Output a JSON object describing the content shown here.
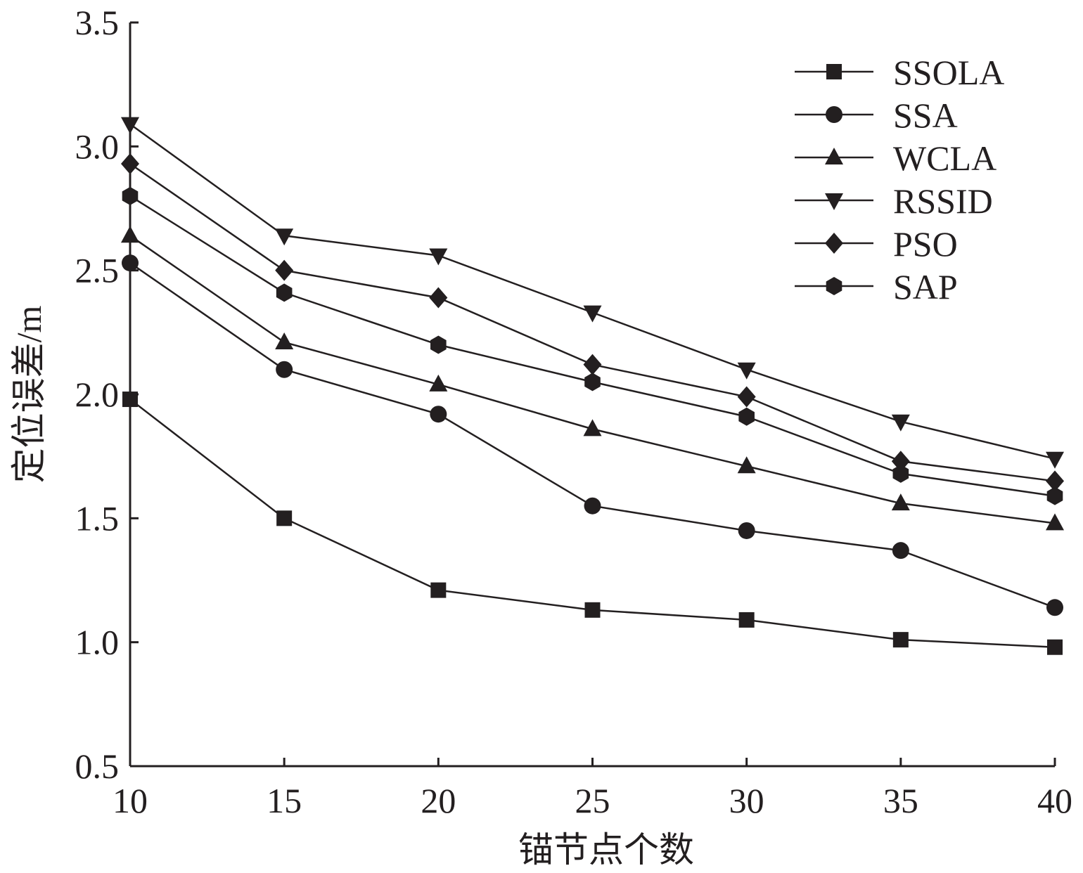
{
  "chart_data": {
    "type": "line",
    "xlabel": "锚节点个数",
    "ylabel": "定位误差/m",
    "x": [
      10,
      15,
      20,
      25,
      30,
      35,
      40
    ],
    "xlim": [
      10,
      40
    ],
    "ylim": [
      0.5,
      3.5
    ],
    "x_ticks": [
      "10",
      "15",
      "20",
      "25",
      "30",
      "35",
      "40"
    ],
    "y_ticks": [
      "0.5",
      "1.0",
      "1.5",
      "2.0",
      "2.5",
      "3.0",
      "3.5"
    ],
    "grid": false,
    "legend_position": "top-right",
    "line_color": "#231f20",
    "series": [
      {
        "name": "SSOLA",
        "marker": "square",
        "values": [
          1.98,
          1.5,
          1.21,
          1.13,
          1.09,
          1.01,
          0.98
        ]
      },
      {
        "name": "SSA",
        "marker": "circle",
        "values": [
          2.53,
          2.1,
          1.92,
          1.55,
          1.45,
          1.37,
          1.14
        ]
      },
      {
        "name": "WCLA",
        "marker": "triangle-up",
        "values": [
          2.64,
          2.21,
          2.04,
          1.86,
          1.71,
          1.56,
          1.48
        ]
      },
      {
        "name": "RSSID",
        "marker": "triangle-down",
        "values": [
          3.09,
          2.64,
          2.56,
          2.33,
          2.1,
          1.89,
          1.74
        ]
      },
      {
        "name": "PSO",
        "marker": "diamond",
        "values": [
          2.93,
          2.5,
          2.39,
          2.12,
          1.99,
          1.73,
          1.65
        ]
      },
      {
        "name": "SAP",
        "marker": "hexagon",
        "values": [
          2.8,
          2.41,
          2.2,
          2.05,
          1.91,
          1.68,
          1.59
        ]
      }
    ]
  }
}
